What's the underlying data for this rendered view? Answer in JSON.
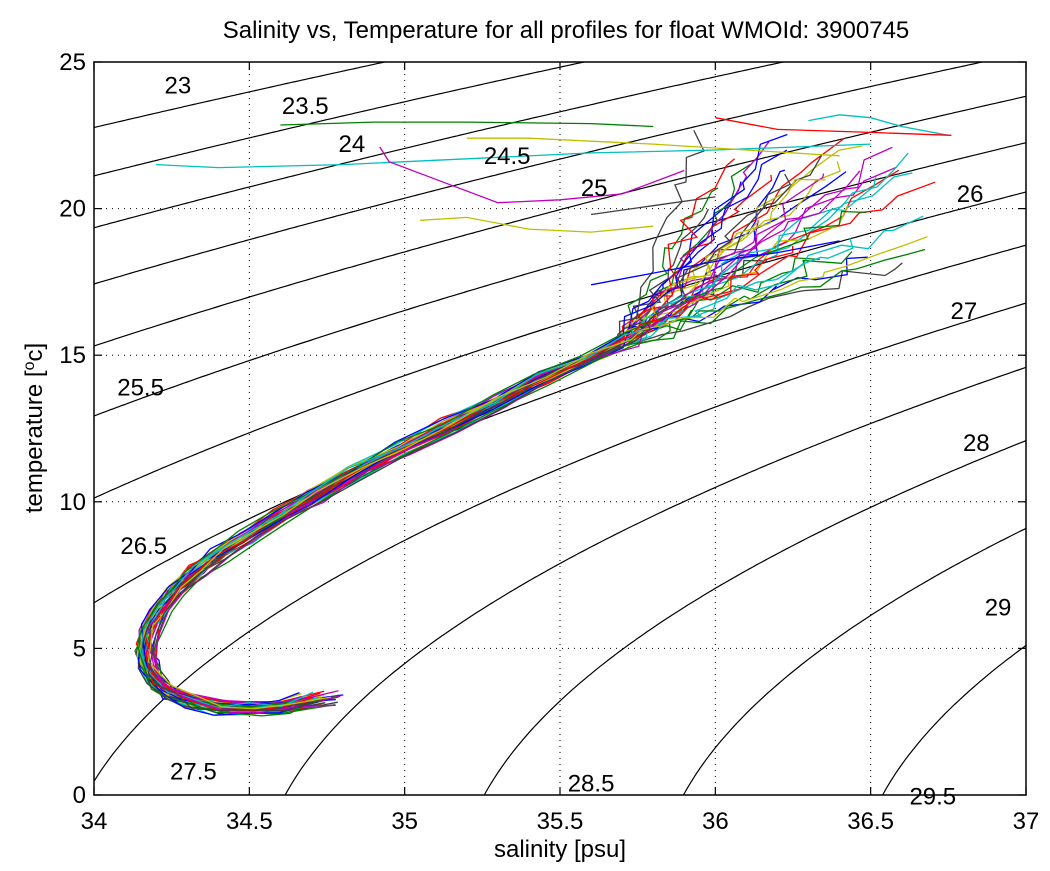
{
  "chart_data": {
    "type": "line",
    "title": "Salinity vs, Temperature for all profiles for float WMOId: 3900745",
    "xlabel": "salinity [psu]",
    "ylabel": "temperature [",
    "ylabel_sup": "o",
    "ylabel_end": "c]",
    "xlim": [
      34,
      37
    ],
    "ylim": [
      0,
      25
    ],
    "xticks": [
      34,
      34.5,
      35,
      35.5,
      36,
      36.5,
      37
    ],
    "xtick_labels": [
      "34",
      "34.5",
      "35",
      "35.5",
      "36",
      "36.5",
      "37"
    ],
    "yticks": [
      0,
      5,
      10,
      15,
      20,
      25
    ],
    "ytick_labels": [
      "0",
      "5",
      "10",
      "15",
      "20",
      "25"
    ],
    "grid": true,
    "density_contours": {
      "levels": [
        23,
        23.5,
        24,
        24.5,
        25,
        25.5,
        26,
        26.5,
        27,
        27.5,
        28,
        28.5,
        29,
        29.5
      ],
      "labels": [
        {
          "text": "23",
          "x": 34.27,
          "y": 24.2
        },
        {
          "text": "23.5",
          "x": 34.68,
          "y": 23.5
        },
        {
          "text": "24",
          "x": 34.83,
          "y": 22.2
        },
        {
          "text": "24.5",
          "x": 35.33,
          "y": 21.8
        },
        {
          "text": "25",
          "x": 35.61,
          "y": 20.7
        },
        {
          "text": "26",
          "x": 36.82,
          "y": 20.5
        },
        {
          "text": "27",
          "x": 36.8,
          "y": 16.5
        },
        {
          "text": "28",
          "x": 36.84,
          "y": 12.0
        },
        {
          "text": "29",
          "x": 36.91,
          "y": 6.4
        },
        {
          "text": "25.5",
          "x": 34.15,
          "y": 13.9
        },
        {
          "text": "26.5",
          "x": 34.16,
          "y": 8.5
        },
        {
          "text": "27.5",
          "x": 34.32,
          "y": 0.8
        },
        {
          "text": "28.5",
          "x": 35.6,
          "y": 0.4
        },
        {
          "text": "29.5",
          "x": 36.7,
          "y": -0.05
        }
      ]
    },
    "profile_colors": [
      "#0000ff",
      "#008000",
      "#ff0000",
      "#00bfbf",
      "#bf00bf",
      "#bfbf00",
      "#404040"
    ],
    "profile_count": 42,
    "main_curve": {
      "salinity": [
        34.72,
        34.62,
        34.52,
        34.42,
        34.32,
        34.25,
        34.21,
        34.18,
        34.17,
        34.18,
        34.22,
        34.27,
        34.33,
        34.41,
        34.5,
        34.6,
        34.72,
        34.85,
        35.0,
        35.15,
        35.3,
        35.45,
        35.6,
        35.72
      ],
      "temperature": [
        3.3,
        3.05,
        2.95,
        3.0,
        3.2,
        3.5,
        3.9,
        4.4,
        4.9,
        5.6,
        6.3,
        7.0,
        7.6,
        8.2,
        8.8,
        9.5,
        10.2,
        11.0,
        11.8,
        12.6,
        13.4,
        14.2,
        14.9,
        15.5
      ]
    },
    "near_surface": [
      {
        "color": "#008000",
        "salinity": [
          35.8,
          35.6,
          35.2,
          34.9,
          34.6
        ],
        "temperature": [
          22.8,
          22.9,
          22.95,
          22.95,
          22.85
        ]
      },
      {
        "color": "#00bfbf",
        "salinity": [
          36.5,
          36.0,
          35.6,
          35.2,
          34.8,
          34.4,
          34.2
        ],
        "temperature": [
          22.2,
          22.0,
          21.9,
          21.7,
          21.5,
          21.4,
          21.5
        ]
      },
      {
        "color": "#bf00bf",
        "salinity": [
          35.9,
          35.7,
          35.5,
          35.3,
          35.1,
          34.95,
          34.92
        ],
        "temperature": [
          21.3,
          20.5,
          20.3,
          20.2,
          21.0,
          21.6,
          22.1
        ]
      },
      {
        "color": "#bfbf00",
        "salinity": [
          36.4,
          36.1,
          35.8,
          35.6,
          35.4,
          35.2
        ],
        "temperature": [
          21.8,
          22.0,
          22.2,
          22.3,
          22.4,
          22.4
        ]
      },
      {
        "color": "#bfbf00",
        "salinity": [
          35.8,
          35.6,
          35.4,
          35.2,
          35.05
        ],
        "temperature": [
          19.4,
          19.2,
          19.3,
          19.7,
          19.6
        ]
      },
      {
        "color": "#404040",
        "salinity": [
          36.0,
          35.8,
          35.6
        ],
        "temperature": [
          20.4,
          20.1,
          19.8
        ]
      },
      {
        "color": "#0000ff",
        "salinity": [
          36.4,
          36.2,
          36.0,
          35.8,
          35.6
        ],
        "temperature": [
          18.9,
          18.5,
          18.2,
          17.8,
          17.4
        ]
      },
      {
        "color": "#00bfbf",
        "salinity": [
          36.75,
          36.6,
          36.5,
          36.4,
          36.3
        ],
        "temperature": [
          22.5,
          22.8,
          23.1,
          23.2,
          23.0
        ]
      },
      {
        "color": "#ff0000",
        "salinity": [
          36.76,
          36.5,
          36.2,
          36.0
        ],
        "temperature": [
          22.5,
          22.6,
          22.7,
          23.1
        ]
      }
    ]
  }
}
